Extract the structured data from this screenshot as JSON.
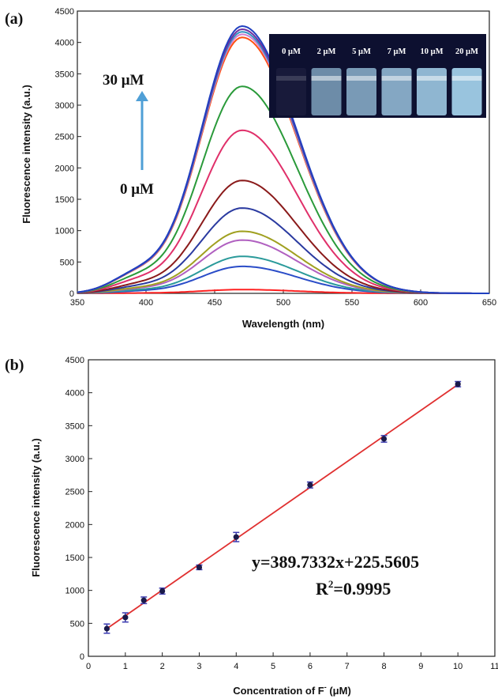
{
  "panel_a": {
    "label": "(a)",
    "annotation_top": "30 μM",
    "annotation_bottom": "0 μM",
    "arrow_color": "#4f9fd6",
    "inset": {
      "vial_labels": [
        "0 μM",
        "2 μM",
        "5 μM",
        "7 μM",
        "10 μM",
        "20 μM"
      ],
      "background_color": "#0d1030",
      "glow_color": "#a9d8f2"
    }
  },
  "panel_b": {
    "label": "(b)",
    "equation": "y=389.7332x+225.5605",
    "r_squared_text": "R",
    "r_squared_sup": "2",
    "r_squared_value": "=0.9995"
  },
  "chart_data": [
    {
      "type": "line",
      "xlabel": "Wavelength (nm)",
      "ylabel": "Fluorescence intensity (a.u.)",
      "xlim": [
        350,
        650
      ],
      "ylim": [
        0,
        4500
      ],
      "x_ticks": [
        "350",
        "400",
        "450",
        "500",
        "550",
        "600",
        "650"
      ],
      "y_ticks": [
        "0",
        "500",
        "1000",
        "1500",
        "2000",
        "2500",
        "3000",
        "3500",
        "4000",
        "4500"
      ],
      "peak_wavelength": 470,
      "shoulder_wavelength": 392,
      "series": [
        {
          "color": "#ff2020",
          "peak": 60
        },
        {
          "color": "#2a4cc8",
          "peak": 430
        },
        {
          "color": "#2a9a9a",
          "peak": 590
        },
        {
          "color": "#b060c0",
          "peak": 850
        },
        {
          "color": "#a0a020",
          "peak": 990
        },
        {
          "color": "#2a3aa0",
          "peak": 1360
        },
        {
          "color": "#8a1a1a",
          "peak": 1800
        },
        {
          "color": "#e0306a",
          "peak": 2600
        },
        {
          "color": "#2a9a3a",
          "peak": 3300
        },
        {
          "color": "#ff5010",
          "peak": 4080
        },
        {
          "color": "#d080d0",
          "peak": 4130
        },
        {
          "color": "#3090c0",
          "peak": 4170
        },
        {
          "color": "#7030a0",
          "peak": 4210
        },
        {
          "color": "#2040c0",
          "peak": 4260
        }
      ]
    },
    {
      "type": "scatter",
      "xlabel": "Concentration of F",
      "xlabel_sup": "-",
      "xlabel_unit": " (μM)",
      "ylabel": "Fluorescence intensity (a.u.)",
      "xlim": [
        0,
        11
      ],
      "ylim": [
        0,
        4500
      ],
      "x_ticks": [
        "0",
        "1",
        "2",
        "3",
        "4",
        "5",
        "6",
        "7",
        "8",
        "9",
        "10",
        "11"
      ],
      "y_ticks": [
        "0",
        "500",
        "1000",
        "1500",
        "2000",
        "2500",
        "3000",
        "3500",
        "4000",
        "4500"
      ],
      "points": [
        {
          "x": 0.5,
          "y": 420,
          "err": 70
        },
        {
          "x": 1,
          "y": 590,
          "err": 70
        },
        {
          "x": 1.5,
          "y": 850,
          "err": 50
        },
        {
          "x": 2,
          "y": 990,
          "err": 45
        },
        {
          "x": 3,
          "y": 1350,
          "err": 35
        },
        {
          "x": 4,
          "y": 1810,
          "err": 70
        },
        {
          "x": 6,
          "y": 2600,
          "err": 45
        },
        {
          "x": 8,
          "y": 3300,
          "err": 50
        },
        {
          "x": 10,
          "y": 4130,
          "err": 40
        }
      ],
      "fit": {
        "slope": 389.7332,
        "intercept": 225.5605,
        "color": "#e03030"
      },
      "point_color": "#1a1a4a",
      "error_color": "#3a3ab0"
    }
  ]
}
